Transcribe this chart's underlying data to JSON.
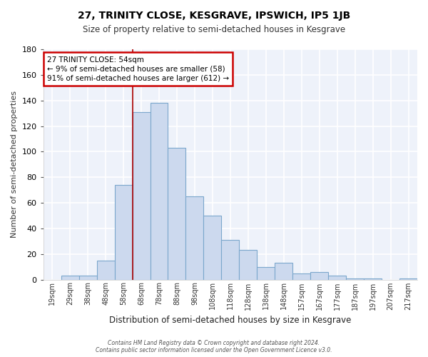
{
  "title": "27, TRINITY CLOSE, KESGRAVE, IPSWICH, IP5 1JB",
  "subtitle": "Size of property relative to semi-detached houses in Kesgrave",
  "xlabel": "Distribution of semi-detached houses by size in Kesgrave",
  "ylabel": "Number of semi-detached properties",
  "categories": [
    "19sqm",
    "29sqm",
    "38sqm",
    "48sqm",
    "58sqm",
    "68sqm",
    "78sqm",
    "88sqm",
    "98sqm",
    "108sqm",
    "118sqm",
    "128sqm",
    "138sqm",
    "148sqm",
    "157sqm",
    "167sqm",
    "177sqm",
    "187sqm",
    "197sqm",
    "207sqm",
    "217sqm"
  ],
  "values": [
    0,
    3,
    3,
    15,
    74,
    131,
    138,
    103,
    65,
    50,
    31,
    23,
    10,
    13,
    5,
    6,
    3,
    1,
    1,
    0,
    1
  ],
  "bar_color": "#ccd9ee",
  "bar_edge_color": "#7ba7cc",
  "highlight_bar_index": 4,
  "highlight_line_color": "#aa0000",
  "annotation_box_text": "27 TRINITY CLOSE: 54sqm\n← 9% of semi-detached houses are smaller (58)\n91% of semi-detached houses are larger (612) →",
  "annotation_box_color": "#ffffff",
  "annotation_box_edge_color": "#cc0000",
  "background_color": "#eef2fa",
  "grid_color": "#ffffff",
  "ylim": [
    0,
    180
  ],
  "yticks": [
    0,
    20,
    40,
    60,
    80,
    100,
    120,
    140,
    160,
    180
  ],
  "footer_line1": "Contains HM Land Registry data © Crown copyright and database right 2024.",
  "footer_line2": "Contains public sector information licensed under the Open Government Licence v3.0."
}
